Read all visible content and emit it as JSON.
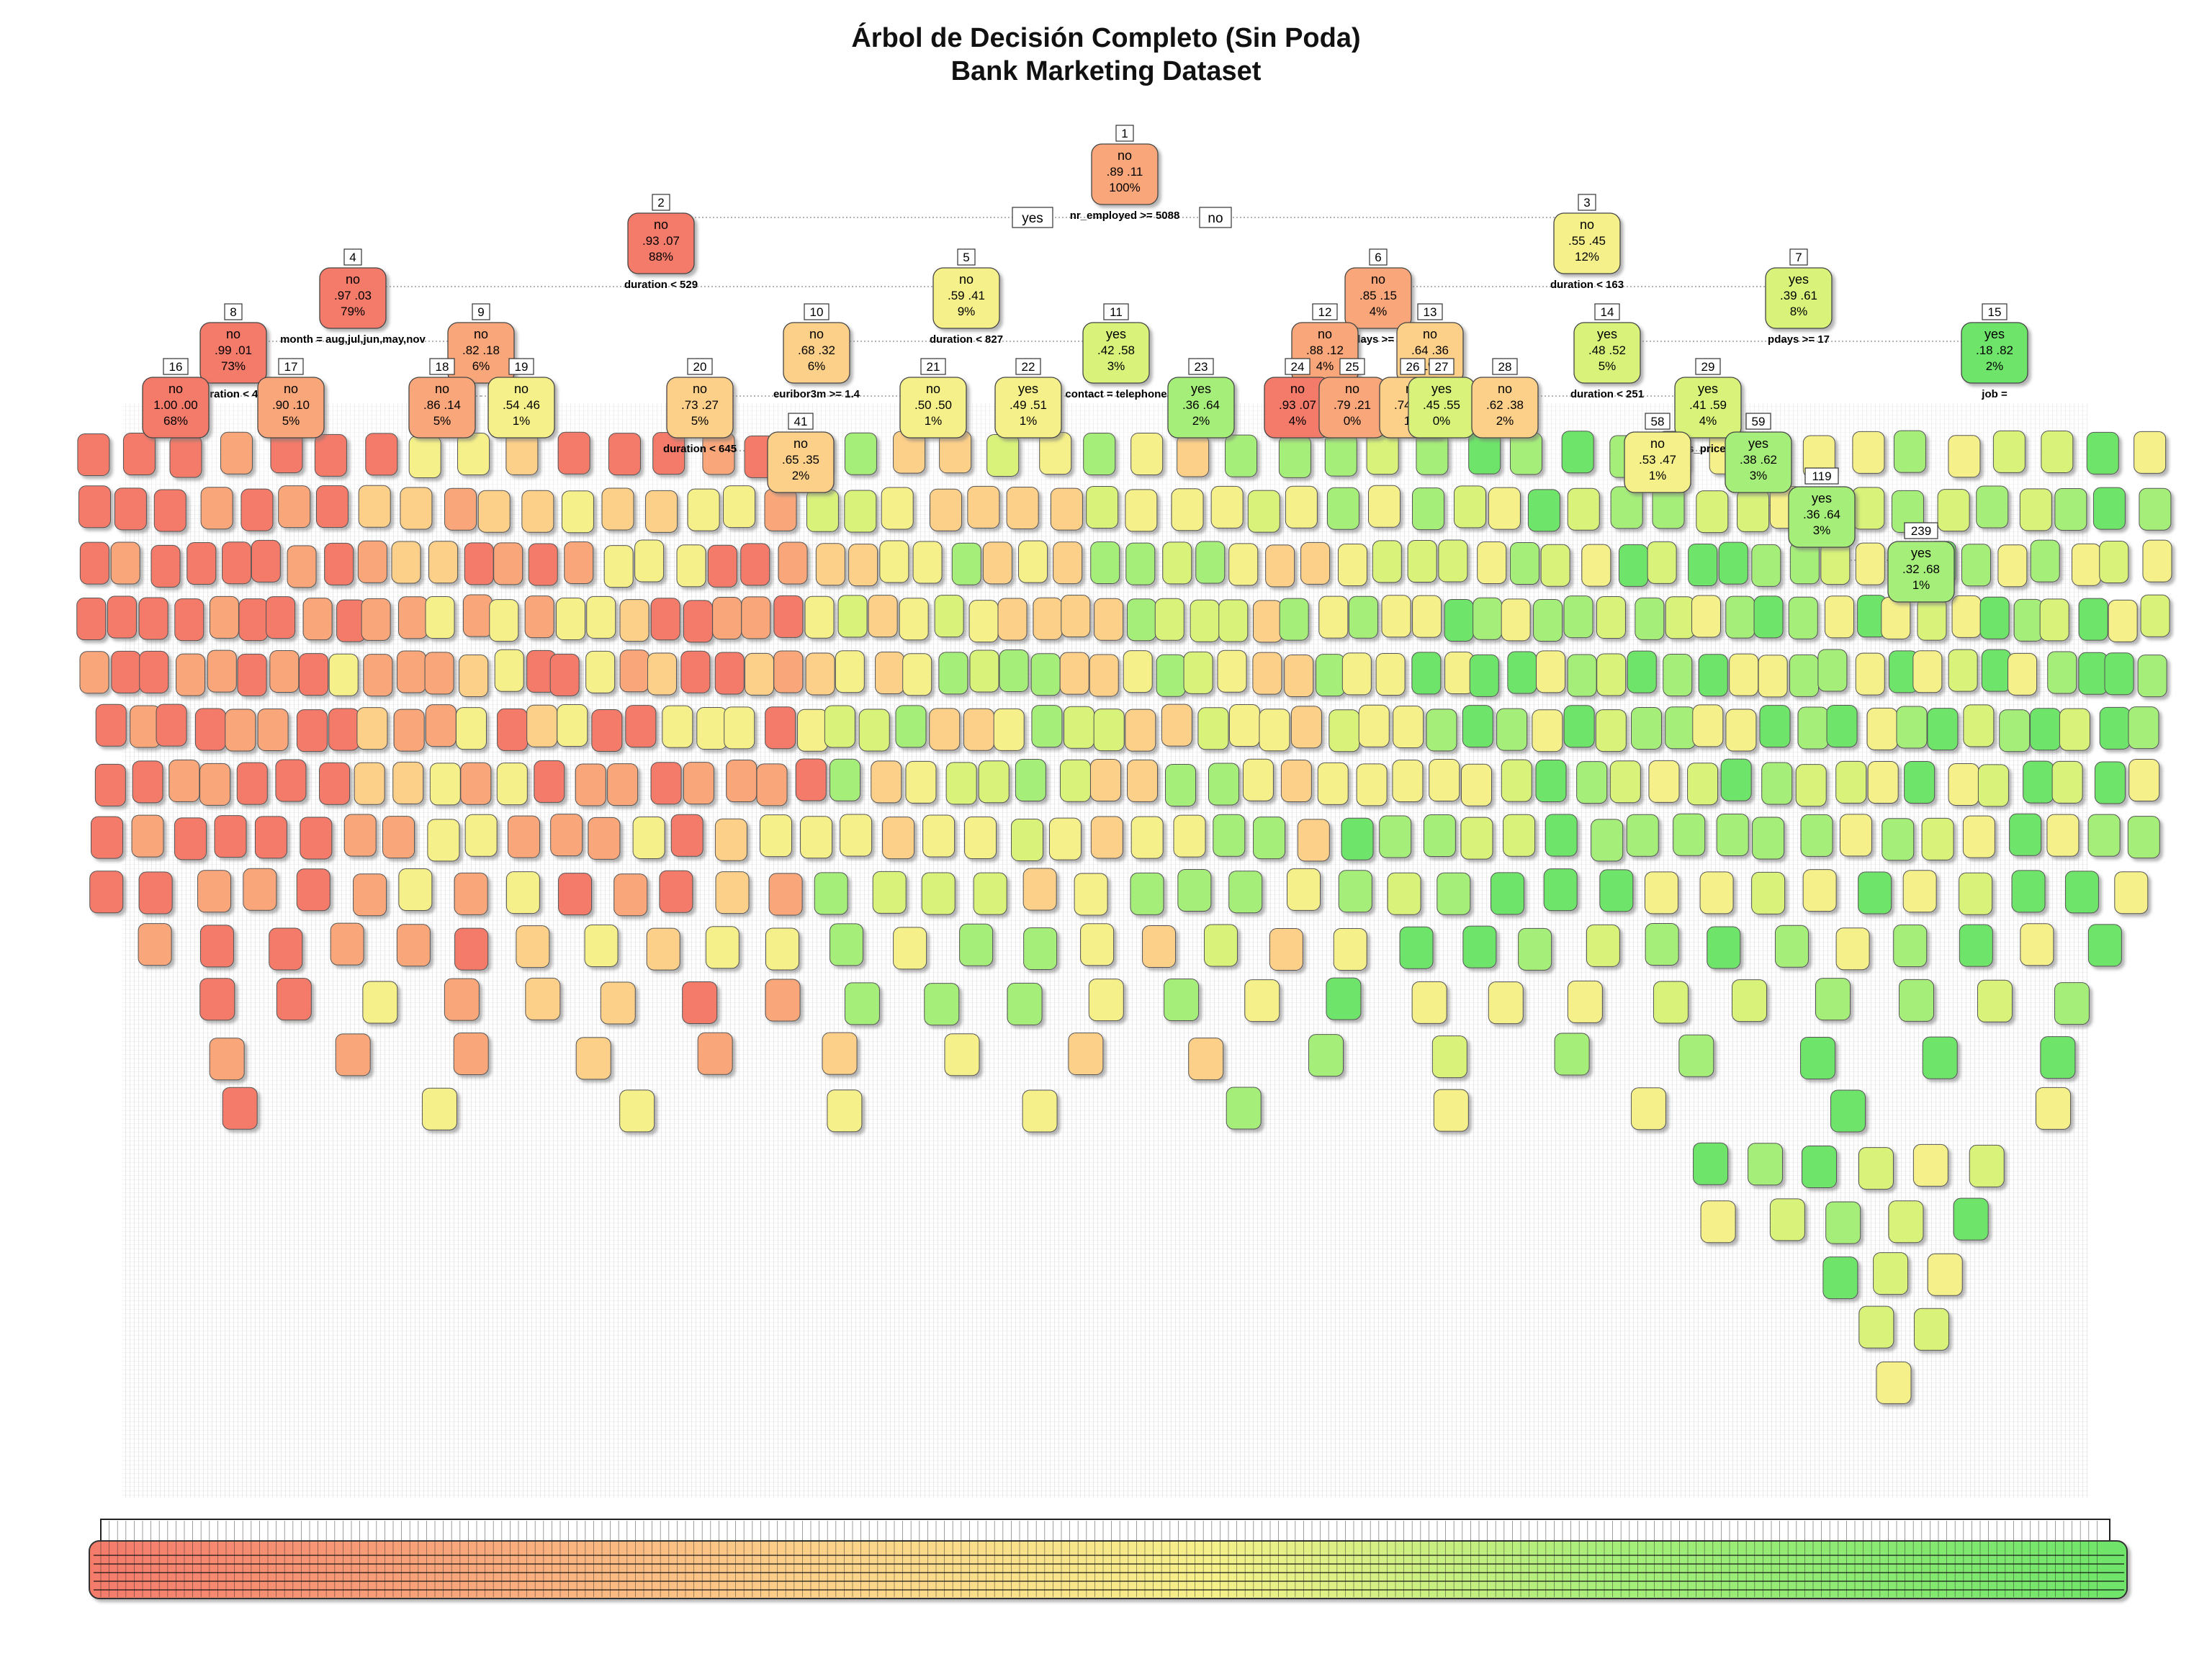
{
  "title": {
    "line1": "Árbol de Decisión Completo (Sin Poda)",
    "line2": "Bank Marketing Dataset"
  },
  "colors": {
    "no_strong": "#f47a6b",
    "no_mid": "#f9a77a",
    "no_light": "#fdd08a",
    "neutral": "#f5f08a",
    "yes_light": "#d8f27a",
    "yes_mid": "#a6ee7a",
    "yes_strong": "#6ee46a",
    "edge": "#888888"
  },
  "branch_labels": {
    "left": "yes",
    "right": "no"
  },
  "nodes": [
    {
      "id": "1",
      "cls": "no",
      "p": ".89 .11",
      "pct": "100%",
      "split": "nr_employed >= 5088"
    },
    {
      "id": "2",
      "cls": "no",
      "p": ".93 .07",
      "pct": "88%",
      "split": "duration < 529"
    },
    {
      "id": "3",
      "cls": "no",
      "p": ".55 .45",
      "pct": "12%",
      "split": "duration < 163"
    },
    {
      "id": "4",
      "cls": "no",
      "p": ".97 .03",
      "pct": "79%",
      "split": "month = aug,jul,jun,may,nov"
    },
    {
      "id": "5",
      "cls": "no",
      "p": ".59 .41",
      "pct": "9%",
      "split": "duration < 827"
    },
    {
      "id": "6",
      "cls": "no",
      "p": ".85 .15",
      "pct": "4%",
      "split": "pdays >= 17"
    },
    {
      "id": "7",
      "cls": "yes",
      "p": ".39 .61",
      "pct": "8%",
      "split": "pdays >= 17"
    },
    {
      "id": "8",
      "cls": "no",
      "p": ".99 .01",
      "pct": "73%",
      "split": "duration < 400"
    },
    {
      "id": "9",
      "cls": "no",
      "p": ".82 .18",
      "pct": "6%",
      "split": ""
    },
    {
      "id": "10",
      "cls": "no",
      "p": ".68 .32",
      "pct": "6%",
      "split": "euribor3m >= 1.4"
    },
    {
      "id": "11",
      "cls": "yes",
      "p": ".42 .58",
      "pct": "3%",
      "split": "contact = telephone"
    },
    {
      "id": "12",
      "cls": "no",
      "p": ".88 .12",
      "pct": "4%",
      "split": ""
    },
    {
      "id": "13",
      "cls": "no",
      "p": ".64 .36",
      "pct": "1%",
      "split": ""
    },
    {
      "id": "14",
      "cls": "yes",
      "p": ".48 .52",
      "pct": "5%",
      "split": "duration < 251"
    },
    {
      "id": "15",
      "cls": "yes",
      "p": ".18 .82",
      "pct": "2%",
      "split": "job = "
    },
    {
      "id": "16",
      "cls": "no",
      "p": "1.00 .00",
      "pct": "68%",
      "split": ""
    },
    {
      "id": "17",
      "cls": "no",
      "p": ".90 .10",
      "pct": "5%",
      "split": ""
    },
    {
      "id": "18",
      "cls": "no",
      "p": ".86 .14",
      "pct": "5%",
      "split": ""
    },
    {
      "id": "19",
      "cls": "no",
      "p": ".54 .46",
      "pct": "1%",
      "split": ""
    },
    {
      "id": "20",
      "cls": "no",
      "p": ".73 .27",
      "pct": "5%",
      "split": "duration < 645"
    },
    {
      "id": "21",
      "cls": "no",
      "p": ".50 .50",
      "pct": "1%",
      "split": ""
    },
    {
      "id": "22",
      "cls": "yes",
      "p": ".49 .51",
      "pct": "1%",
      "split": ""
    },
    {
      "id": "23",
      "cls": "yes",
      "p": ".36 .64",
      "pct": "2%",
      "split": ""
    },
    {
      "id": "24",
      "cls": "no",
      "p": ".93 .07",
      "pct": "4%",
      "split": ""
    },
    {
      "id": "25",
      "cls": "no",
      "p": ".79 .21",
      "pct": "0%",
      "split": ""
    },
    {
      "id": "26",
      "cls": "no",
      "p": ".74 .26",
      "pct": "1%",
      "split": ""
    },
    {
      "id": "27",
      "cls": "yes",
      "p": ".45 .55",
      "pct": "0%",
      "split": ""
    },
    {
      "id": "28",
      "cls": "no",
      "p": ".62 .38",
      "pct": "2%",
      "split": ""
    },
    {
      "id": "29",
      "cls": "yes",
      "p": ".41 .59",
      "pct": "4%",
      "split": "cons_price_idx"
    },
    {
      "id": "41",
      "cls": "no",
      "p": ".65 .35",
      "pct": "2%",
      "split": ""
    },
    {
      "id": "58",
      "cls": "no",
      "p": ".53 .47",
      "pct": "1%",
      "split": ""
    },
    {
      "id": "59",
      "cls": "yes",
      "p": ".38 .62",
      "pct": "3%",
      "split": ""
    },
    {
      "id": "119",
      "cls": "yes",
      "p": ".36 .64",
      "pct": "3%",
      "split": ""
    },
    {
      "id": "239",
      "cls": "yes",
      "p": ".32 .68",
      "pct": "1%",
      "split": ""
    }
  ],
  "bottom_strip": {
    "label": "leaf-nodes-band"
  }
}
